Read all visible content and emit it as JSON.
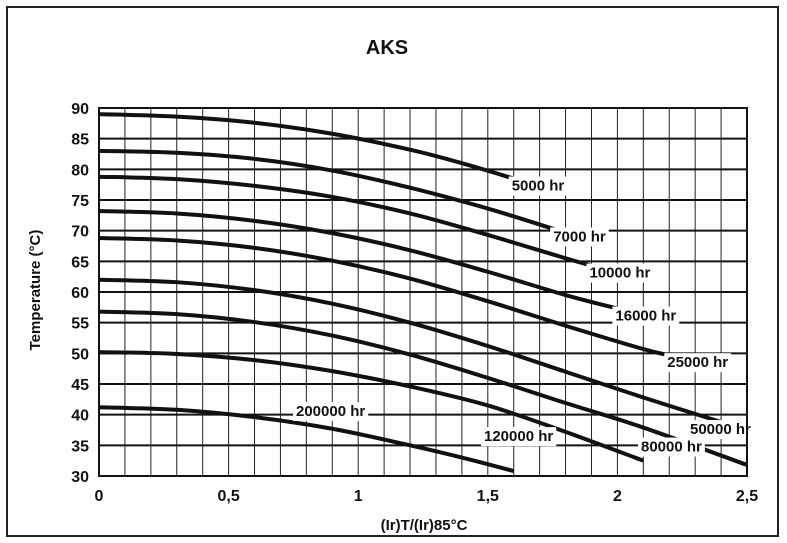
{
  "chart_data": {
    "type": "line",
    "title": "AKS",
    "xlabel": "(Ir)T/(Ir)85°C",
    "ylabel": "Temperature (°C)",
    "xlim": [
      0,
      2.5
    ],
    "ylim": [
      30,
      90
    ],
    "x_ticks": [
      "0",
      "0,5",
      "1",
      "1,5",
      "2",
      "2,5"
    ],
    "x_tick_values": [
      0,
      0.5,
      1,
      1.5,
      2,
      2.5
    ],
    "y_ticks": [
      "30",
      "35",
      "40",
      "45",
      "50",
      "55",
      "60",
      "65",
      "70",
      "75",
      "80",
      "85",
      "90"
    ],
    "y_tick_values": [
      30,
      35,
      40,
      45,
      50,
      55,
      60,
      65,
      70,
      75,
      80,
      85,
      90
    ],
    "grid": true,
    "x_minor_step": 0.1,
    "series": [
      {
        "name": "5000 hr",
        "x": [
          0,
          0.3,
          0.6,
          0.9,
          1.2,
          1.4,
          1.6
        ],
        "y": [
          89,
          88.6,
          87.6,
          85.8,
          83.2,
          81.0,
          78.5
        ]
      },
      {
        "name": "7000 hr",
        "x": [
          0,
          0.3,
          0.6,
          0.9,
          1.2,
          1.5,
          1.76
        ],
        "y": [
          83,
          82.7,
          81.7,
          79.8,
          77.0,
          73.6,
          70.2
        ]
      },
      {
        "name": "10000 hr",
        "x": [
          0,
          0.3,
          0.6,
          0.9,
          1.2,
          1.5,
          1.8,
          1.9
        ],
        "y": [
          78.8,
          78.4,
          77.3,
          75.5,
          72.8,
          69.3,
          65.5,
          64.3
        ]
      },
      {
        "name": "16000 hr",
        "x": [
          0,
          0.3,
          0.6,
          0.9,
          1.2,
          1.5,
          1.8,
          2.0
        ],
        "y": [
          73.2,
          72.8,
          71.6,
          69.6,
          66.8,
          63.3,
          59.5,
          57.3
        ]
      },
      {
        "name": "25000 hr",
        "x": [
          0,
          0.3,
          0.6,
          0.9,
          1.2,
          1.5,
          1.8,
          2.1,
          2.2
        ],
        "y": [
          68.8,
          68.4,
          67.2,
          65.1,
          62.2,
          58.5,
          54.5,
          50.7,
          49.7
        ]
      },
      {
        "name": "50000 hr",
        "x": [
          0,
          0.3,
          0.6,
          0.9,
          1.2,
          1.5,
          1.8,
          2.1,
          2.4
        ],
        "y": [
          62,
          61.6,
          60.3,
          58.1,
          55.0,
          51.2,
          47.0,
          42.8,
          38.8
        ]
      },
      {
        "name": "80000 hr",
        "x": [
          0,
          0.3,
          0.6,
          0.9,
          1.2,
          1.5,
          1.8,
          2.1,
          2.5
        ],
        "y": [
          56.8,
          56.4,
          55.1,
          52.9,
          49.8,
          46.0,
          41.9,
          37.9,
          31.8
        ]
      },
      {
        "name": "120000 hr",
        "x": [
          0,
          0.3,
          0.6,
          0.9,
          1.2,
          1.5,
          1.8,
          2.1
        ],
        "y": [
          50.2,
          49.9,
          48.9,
          47.1,
          44.6,
          41.5,
          37.2,
          32.5
        ]
      },
      {
        "name": "200000 hr",
        "x": [
          0,
          0.3,
          0.6,
          0.9,
          1.2,
          1.4,
          1.6
        ],
        "y": [
          41.2,
          40.8,
          39.6,
          37.7,
          35.0,
          33.0,
          30.8
        ]
      }
    ]
  }
}
